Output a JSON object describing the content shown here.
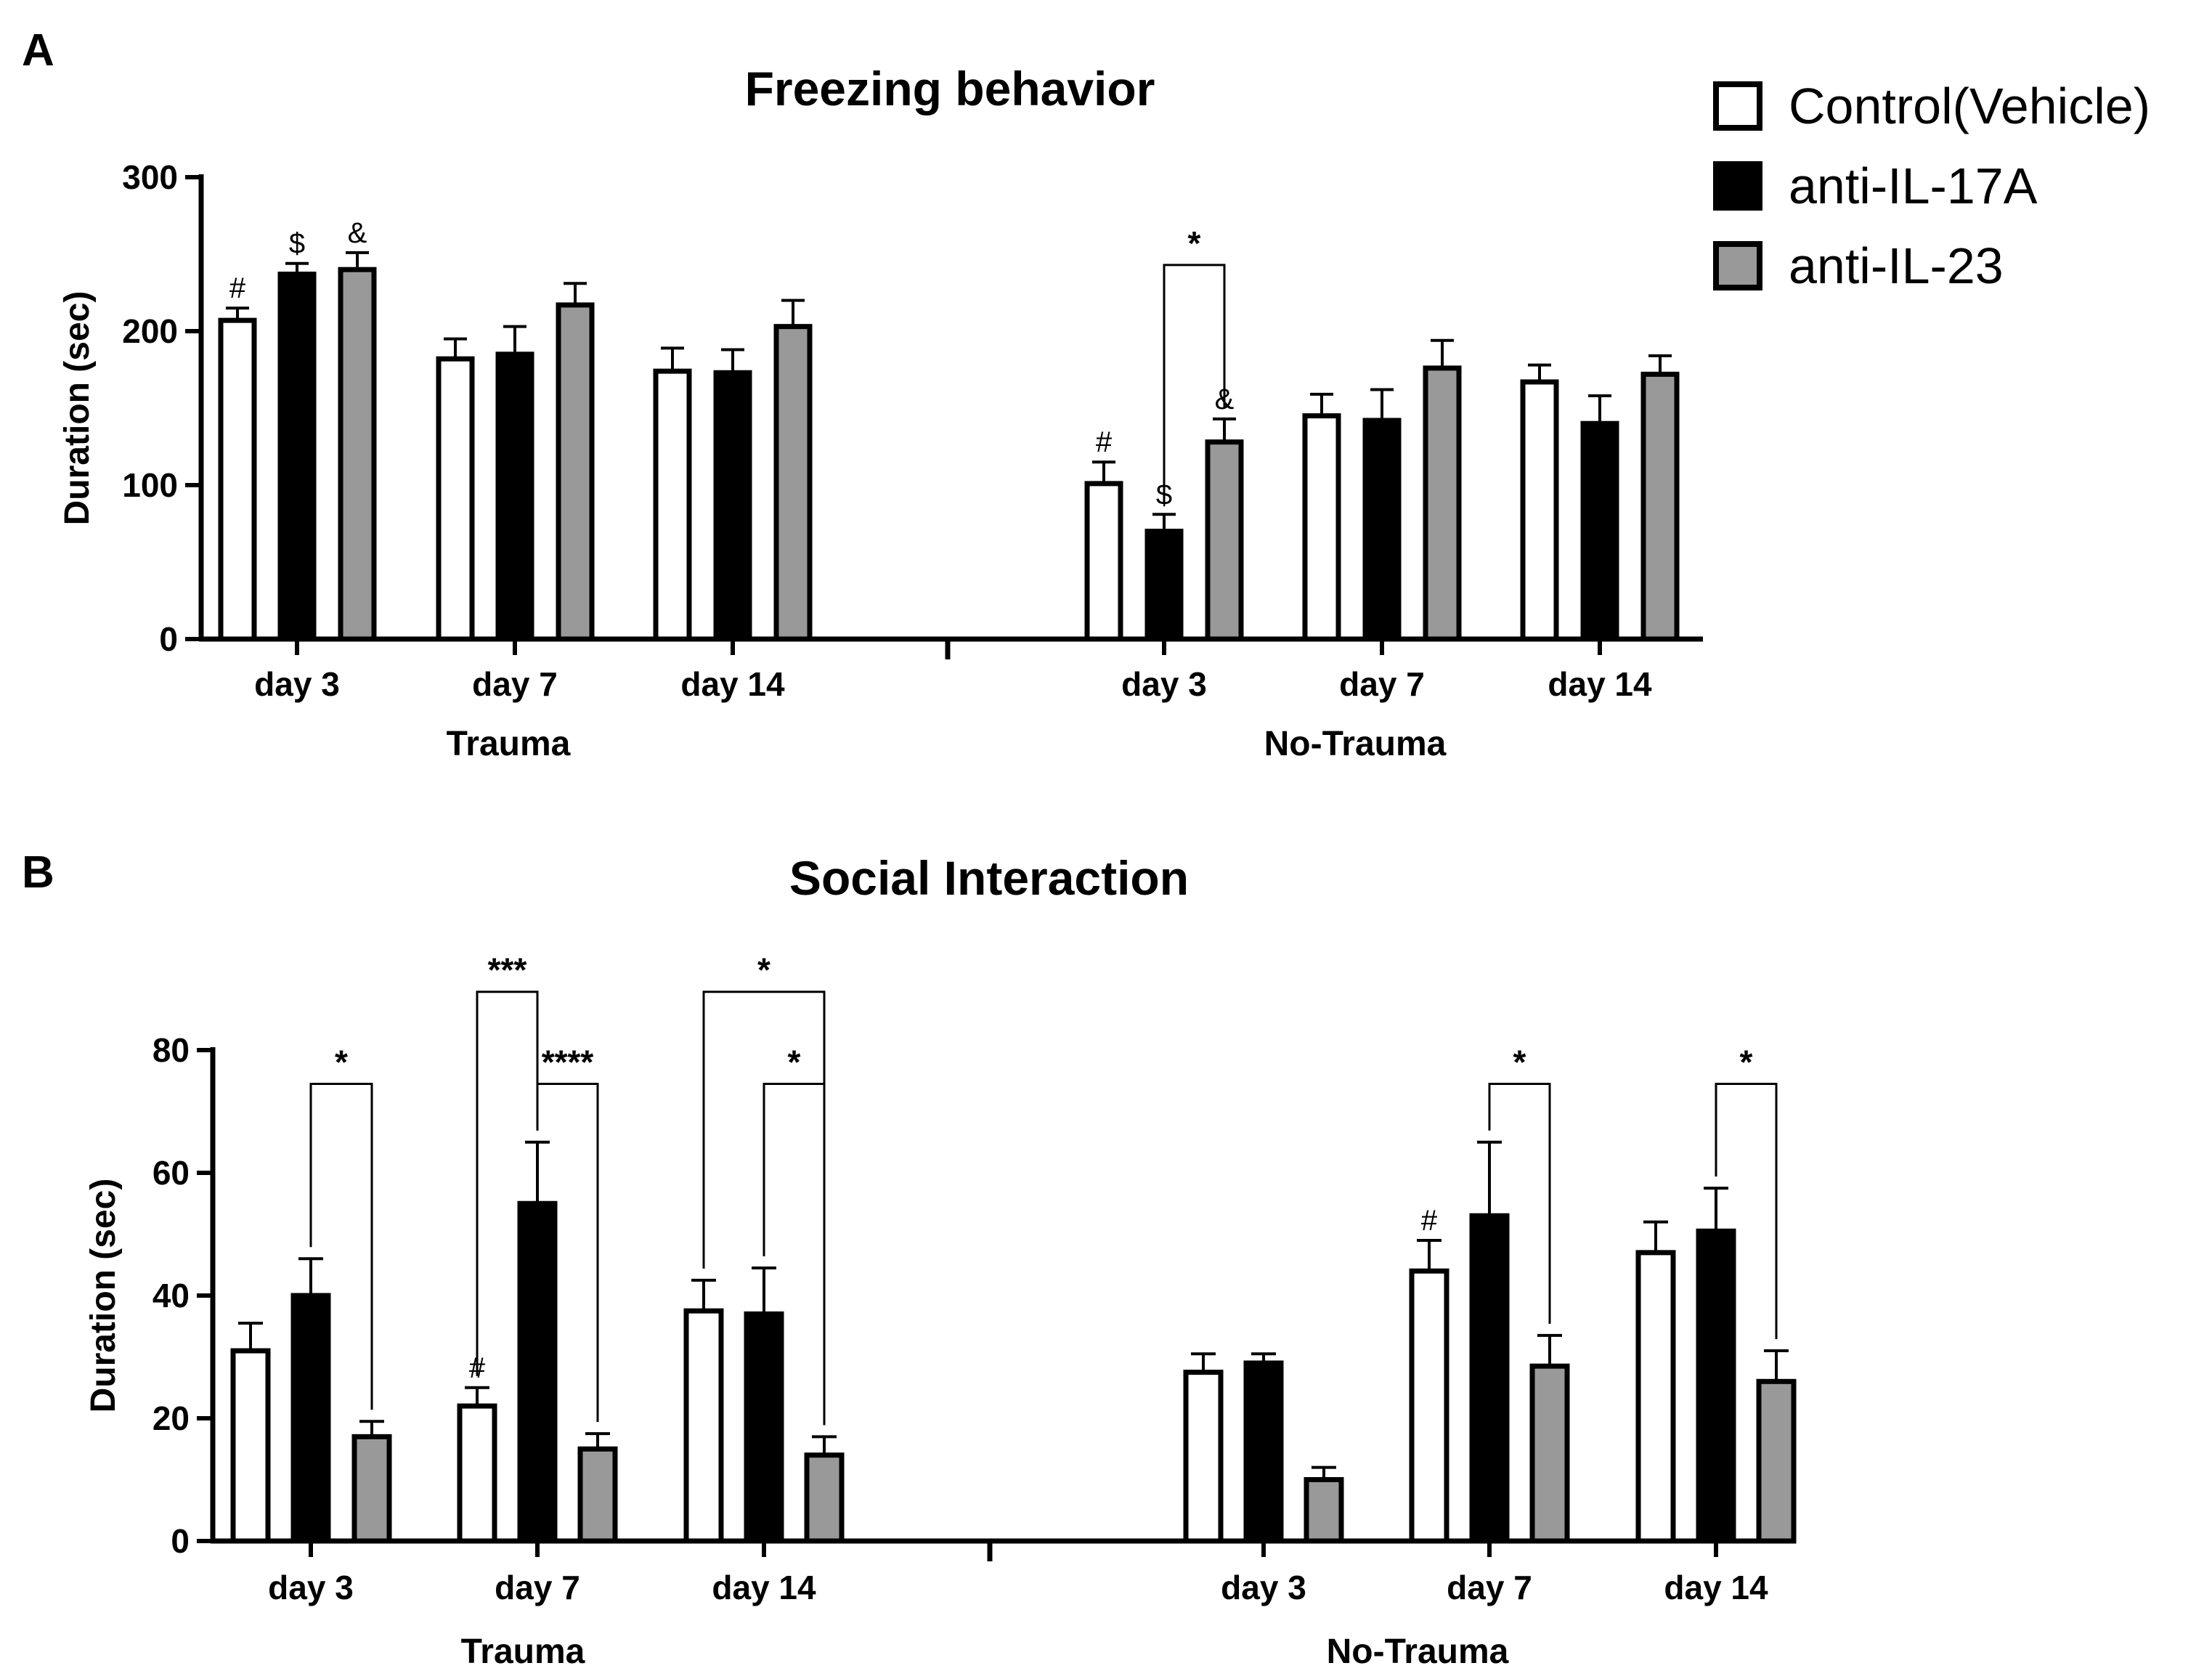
{
  "legend": {
    "entries": [
      {
        "name": "Control(Vehicle)",
        "color": "#ffffff"
      },
      {
        "name": "anti-IL-17A",
        "color": "#000000"
      },
      {
        "name": "anti-IL-23",
        "color": "#999999"
      }
    ]
  },
  "chart_data": [
    {
      "panel": "A",
      "type": "bar",
      "title": "Freezing behavior",
      "ylabel": "Duration (sec)",
      "xlabel": "",
      "ylim": [
        0,
        300
      ],
      "yticks": [
        0,
        100,
        200,
        300
      ],
      "group_labels": [
        "Trauma",
        "No-Trauma"
      ],
      "categories": [
        "day 3",
        "day 7",
        "day 14",
        "day 3",
        "day 7",
        "day 14"
      ],
      "series": [
        {
          "name": "Control(Vehicle)",
          "values": [
            207,
            182,
            174,
            101,
            145,
            167
          ],
          "errors": [
            8,
            13,
            15,
            14,
            14,
            11
          ]
        },
        {
          "name": "anti-IL-17A",
          "values": [
            237,
            185,
            173,
            70,
            142,
            140
          ],
          "errors": [
            7,
            18,
            15,
            11,
            20,
            18
          ]
        },
        {
          "name": "anti-IL-23",
          "values": [
            240,
            217,
            203,
            128,
            176,
            172
          ],
          "errors": [
            11,
            14,
            17,
            15,
            18,
            12
          ]
        }
      ],
      "annotations": [
        {
          "text": "#",
          "cat": 0,
          "s": 0
        },
        {
          "text": "$",
          "cat": 0,
          "s": 1
        },
        {
          "text": "&",
          "cat": 0,
          "s": 2
        },
        {
          "text": "#",
          "cat": 3,
          "s": 0
        },
        {
          "text": "$",
          "cat": 3,
          "s": 1
        },
        {
          "text": "&",
          "cat": 3,
          "s": 2
        }
      ],
      "brackets": [
        {
          "cat1": 3,
          "s1": 1,
          "cat2": 3,
          "s2": 2,
          "label": "*",
          "level": 243
        }
      ]
    },
    {
      "panel": "B",
      "type": "bar",
      "title": "Social Interaction",
      "ylabel": "Duration (sec)",
      "xlabel": "",
      "ylim": [
        0,
        80
      ],
      "yticks": [
        0,
        20,
        40,
        60,
        80
      ],
      "group_labels": [
        "Trauma",
        "No-Trauma"
      ],
      "categories": [
        "day 3",
        "day 7",
        "day 14",
        "day 3",
        "day 7",
        "day 14"
      ],
      "series": [
        {
          "name": "Control(Vehicle)",
          "values": [
            31,
            22,
            37.5,
            27.5,
            44,
            47
          ],
          "errors": [
            4.5,
            3,
            5,
            3,
            5,
            5
          ]
        },
        {
          "name": "anti-IL-17A",
          "values": [
            40,
            55,
            37,
            29,
            53,
            50.5
          ],
          "errors": [
            6,
            10,
            7.5,
            1.5,
            12,
            7
          ]
        },
        {
          "name": "anti-IL-23",
          "values": [
            17,
            15,
            14,
            10,
            28.5,
            26
          ],
          "errors": [
            2.5,
            2.5,
            3,
            2,
            5,
            5
          ]
        }
      ],
      "annotations": [
        {
          "text": "#",
          "cat": 1,
          "s": 0
        },
        {
          "text": "#",
          "cat": 4,
          "s": 0
        }
      ],
      "brackets": [
        {
          "cat1": 0,
          "s1": 1,
          "cat2": 0,
          "s2": 2,
          "label": "*",
          "level": 74.5
        },
        {
          "cat1": 1,
          "s1": 0,
          "cat2": 1,
          "s2": 1,
          "label": "***",
          "level": 89.5
        },
        {
          "cat1": 1,
          "s1": 1,
          "cat2": 1,
          "s2": 2,
          "label": "****",
          "level": 74.5
        },
        {
          "cat1": 2,
          "s1": 0,
          "cat2": 2,
          "s2": 2,
          "label": "*",
          "level": 89.5
        },
        {
          "cat1": 2,
          "s1": 1,
          "cat2": 2,
          "s2": 2,
          "label": "*",
          "level": 74.5
        },
        {
          "cat1": 4,
          "s1": 1,
          "cat2": 4,
          "s2": 2,
          "label": "*",
          "level": 74.5
        },
        {
          "cat1": 5,
          "s1": 1,
          "cat2": 5,
          "s2": 2,
          "label": "*",
          "level": 74.5
        }
      ]
    }
  ]
}
